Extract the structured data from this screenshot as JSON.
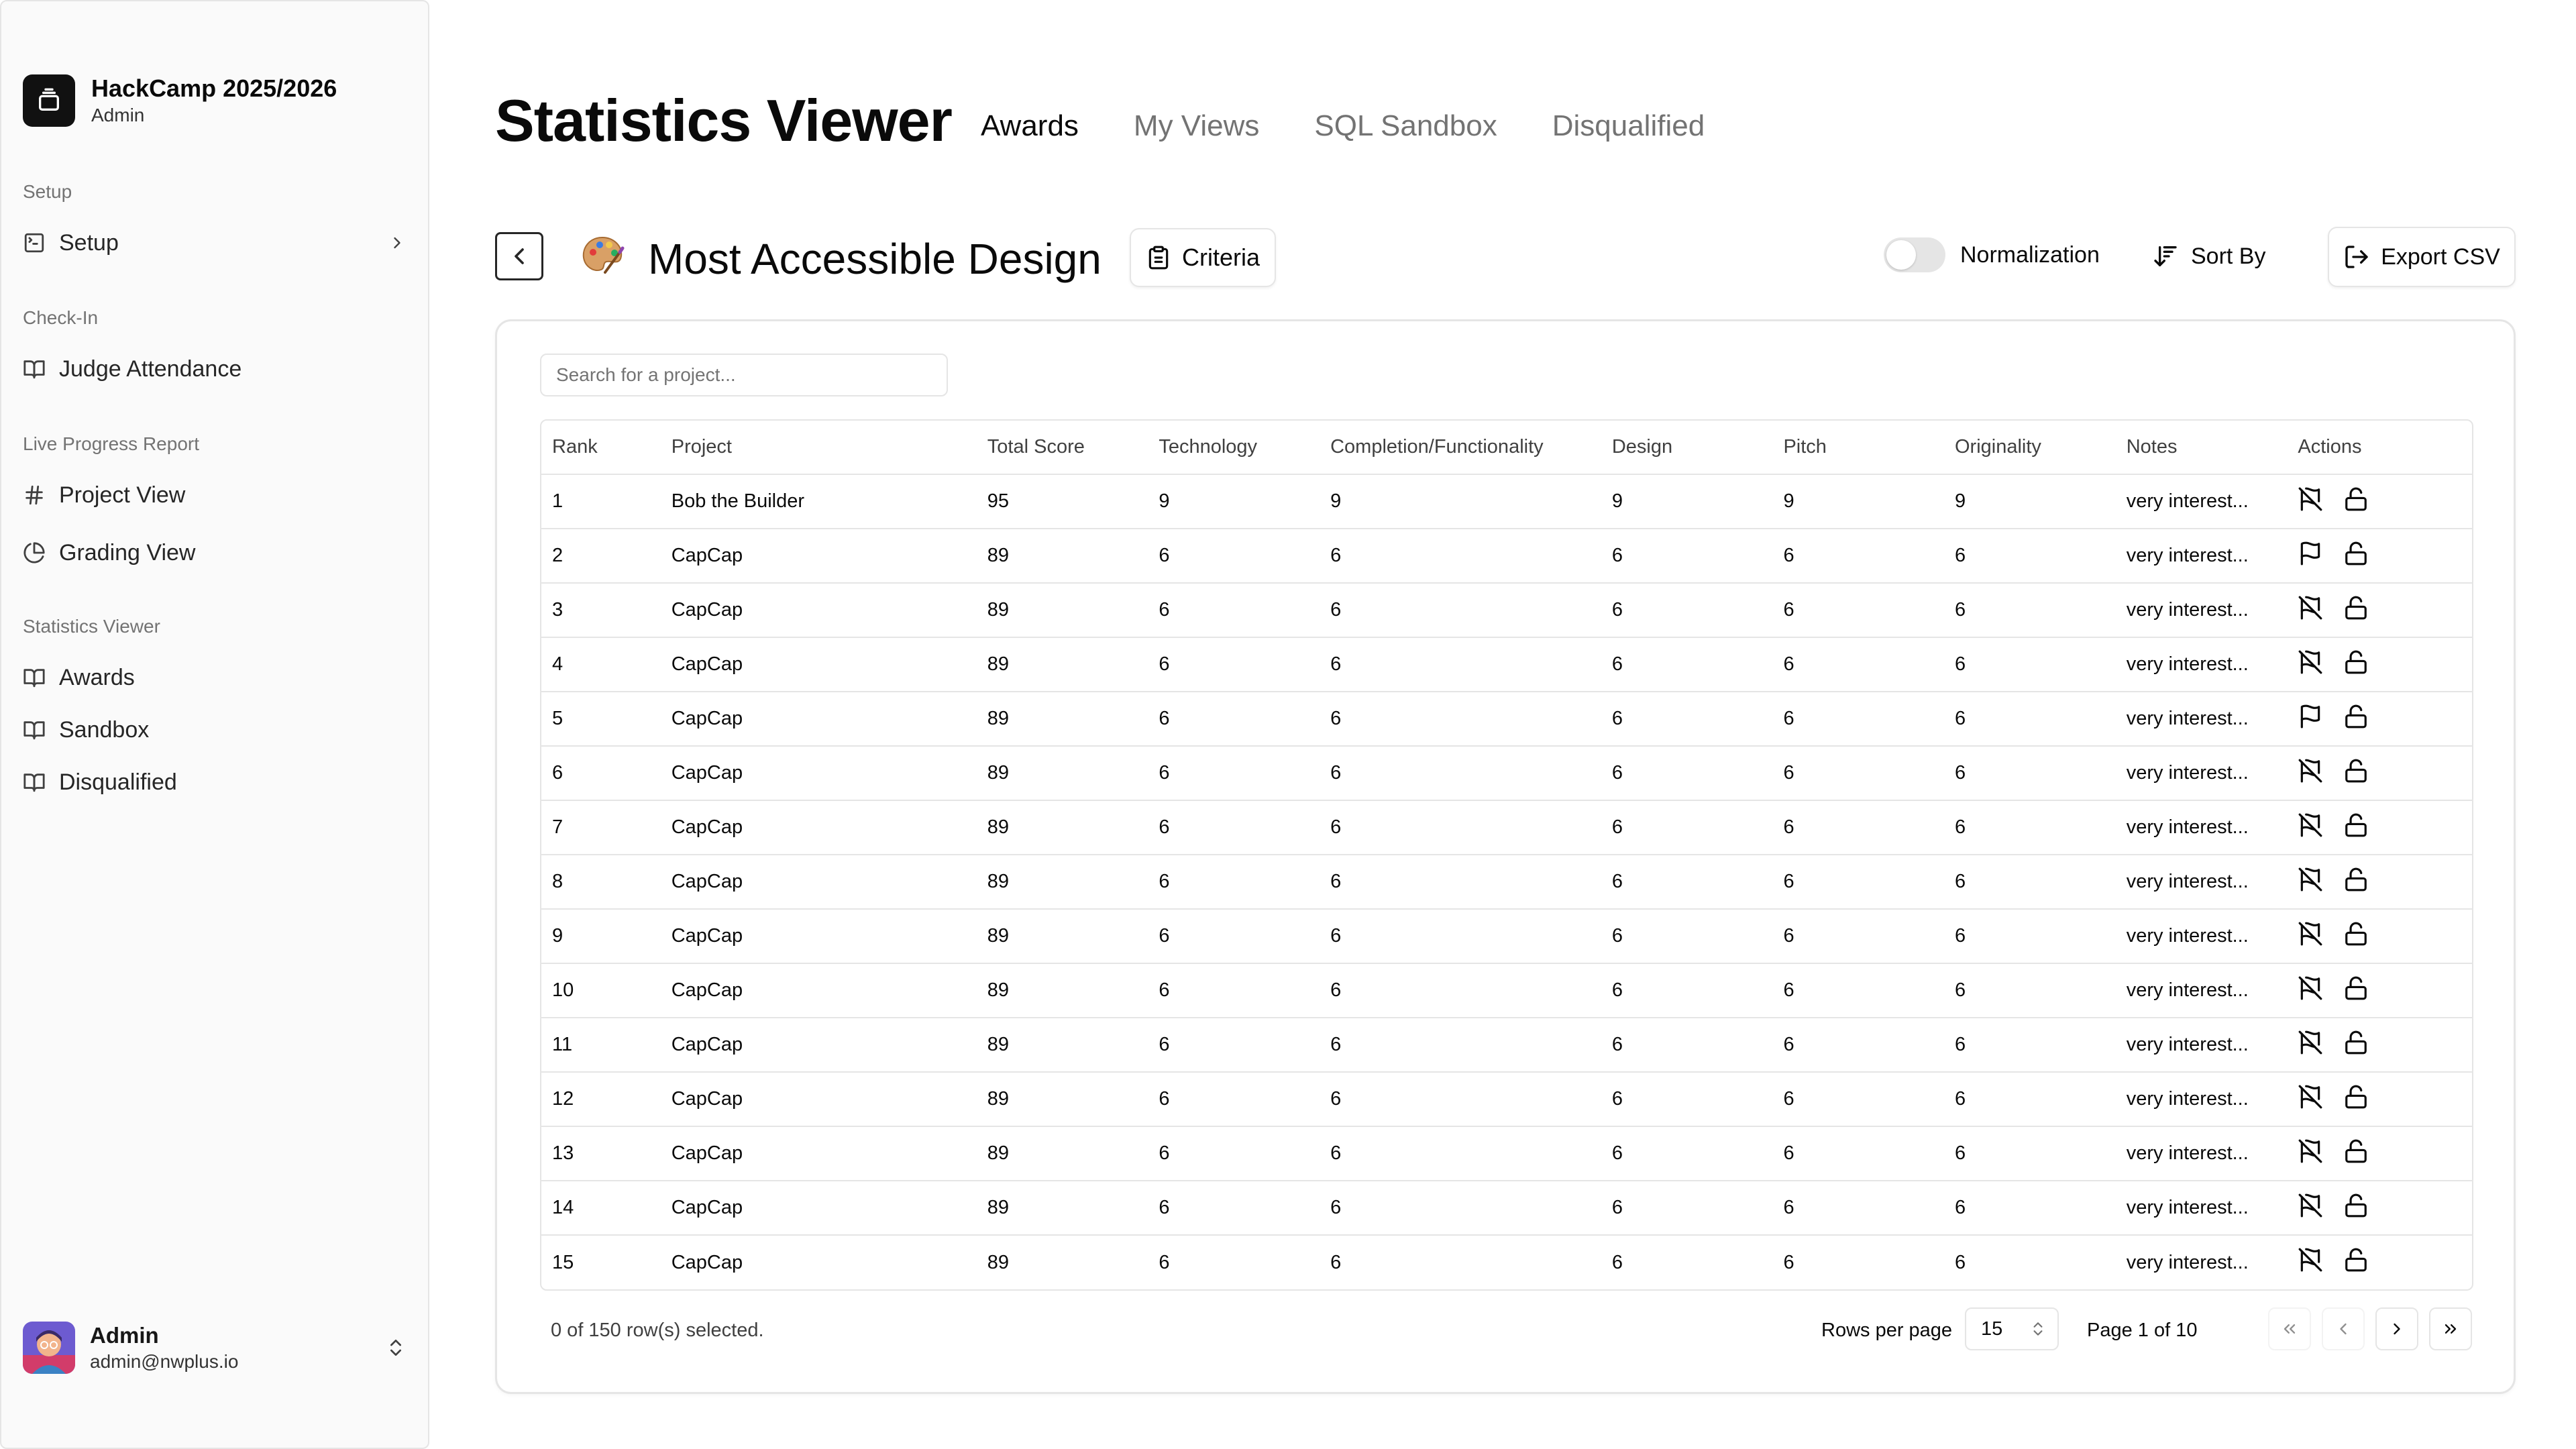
{
  "sidebar": {
    "app_title": "HackCamp 2025/2026",
    "app_role": "Admin",
    "groups": [
      {
        "label": "Setup",
        "items": [
          {
            "label": "Setup",
            "icon": "terminal-square-icon",
            "has_chevron": true
          }
        ]
      },
      {
        "label": "Check-In",
        "items": [
          {
            "label": "Judge Attendance",
            "icon": "book-open-icon"
          }
        ]
      },
      {
        "label": "Live Progress Report",
        "items": [
          {
            "label": "Project View",
            "icon": "hash-icon"
          },
          {
            "label": "Grading View",
            "icon": "pie-chart-icon"
          }
        ]
      },
      {
        "label": "Statistics Viewer",
        "items": [
          {
            "label": "Awards",
            "icon": "book-open-icon"
          },
          {
            "label": "Sandbox",
            "icon": "book-open-icon"
          },
          {
            "label": "Disqualified",
            "icon": "book-open-icon"
          }
        ]
      }
    ],
    "user": {
      "name": "Admin",
      "email": "admin@nwplus.io"
    }
  },
  "header": {
    "title": "Statistics Viewer",
    "tabs": [
      {
        "label": "Awards",
        "active": true
      },
      {
        "label": "My Views",
        "active": false
      },
      {
        "label": "SQL Sandbox",
        "active": false
      },
      {
        "label": "Disqualified",
        "active": false
      }
    ]
  },
  "award": {
    "emoji": "palette",
    "title": "Most Accessible Design",
    "criteria_label": "Criteria",
    "normalization_label": "Normalization",
    "normalization_on": false,
    "sort_label": "Sort By",
    "export_label": "Export CSV"
  },
  "table": {
    "search_placeholder": "Search for a project...",
    "columns": [
      "Rank",
      "Project",
      "Total Score",
      "Technology",
      "Completion/Functionality",
      "Design",
      "Pitch",
      "Originality",
      "Notes",
      "Actions"
    ],
    "rows": [
      {
        "rank": "1",
        "project": "Bob the Builder",
        "total": "95",
        "technology": "9",
        "completion": "9",
        "design": "9",
        "pitch": "9",
        "originality": "9",
        "notes": "very interest...",
        "flagged": false
      },
      {
        "rank": "2",
        "project": "CapCap",
        "total": "89",
        "technology": "6",
        "completion": "6",
        "design": "6",
        "pitch": "6",
        "originality": "6",
        "notes": "very interest...",
        "flagged": true
      },
      {
        "rank": "3",
        "project": "CapCap",
        "total": "89",
        "technology": "6",
        "completion": "6",
        "design": "6",
        "pitch": "6",
        "originality": "6",
        "notes": "very interest...",
        "flagged": false
      },
      {
        "rank": "4",
        "project": "CapCap",
        "total": "89",
        "technology": "6",
        "completion": "6",
        "design": "6",
        "pitch": "6",
        "originality": "6",
        "notes": "very interest...",
        "flagged": false
      },
      {
        "rank": "5",
        "project": "CapCap",
        "total": "89",
        "technology": "6",
        "completion": "6",
        "design": "6",
        "pitch": "6",
        "originality": "6",
        "notes": "very interest...",
        "flagged": true
      },
      {
        "rank": "6",
        "project": "CapCap",
        "total": "89",
        "technology": "6",
        "completion": "6",
        "design": "6",
        "pitch": "6",
        "originality": "6",
        "notes": "very interest...",
        "flagged": false
      },
      {
        "rank": "7",
        "project": "CapCap",
        "total": "89",
        "technology": "6",
        "completion": "6",
        "design": "6",
        "pitch": "6",
        "originality": "6",
        "notes": "very interest...",
        "flagged": false
      },
      {
        "rank": "8",
        "project": "CapCap",
        "total": "89",
        "technology": "6",
        "completion": "6",
        "design": "6",
        "pitch": "6",
        "originality": "6",
        "notes": "very interest...",
        "flagged": false
      },
      {
        "rank": "9",
        "project": "CapCap",
        "total": "89",
        "technology": "6",
        "completion": "6",
        "design": "6",
        "pitch": "6",
        "originality": "6",
        "notes": "very interest...",
        "flagged": false
      },
      {
        "rank": "10",
        "project": "CapCap",
        "total": "89",
        "technology": "6",
        "completion": "6",
        "design": "6",
        "pitch": "6",
        "originality": "6",
        "notes": "very interest...",
        "flagged": false
      },
      {
        "rank": "11",
        "project": "CapCap",
        "total": "89",
        "technology": "6",
        "completion": "6",
        "design": "6",
        "pitch": "6",
        "originality": "6",
        "notes": "very interest...",
        "flagged": false
      },
      {
        "rank": "12",
        "project": "CapCap",
        "total": "89",
        "technology": "6",
        "completion": "6",
        "design": "6",
        "pitch": "6",
        "originality": "6",
        "notes": "very interest...",
        "flagged": false
      },
      {
        "rank": "13",
        "project": "CapCap",
        "total": "89",
        "technology": "6",
        "completion": "6",
        "design": "6",
        "pitch": "6",
        "originality": "6",
        "notes": "very interest...",
        "flagged": false
      },
      {
        "rank": "14",
        "project": "CapCap",
        "total": "89",
        "technology": "6",
        "completion": "6",
        "design": "6",
        "pitch": "6",
        "originality": "6",
        "notes": "very interest...",
        "flagged": false
      },
      {
        "rank": "15",
        "project": "CapCap",
        "total": "89",
        "technology": "6",
        "completion": "6",
        "design": "6",
        "pitch": "6",
        "originality": "6",
        "notes": "very interest...",
        "flagged": false
      }
    ],
    "footer": {
      "selected_text": "0 of 150 row(s) selected.",
      "rows_per_page_label": "Rows per page",
      "rows_per_page": "15",
      "page_info": "Page 1 of 10"
    }
  }
}
